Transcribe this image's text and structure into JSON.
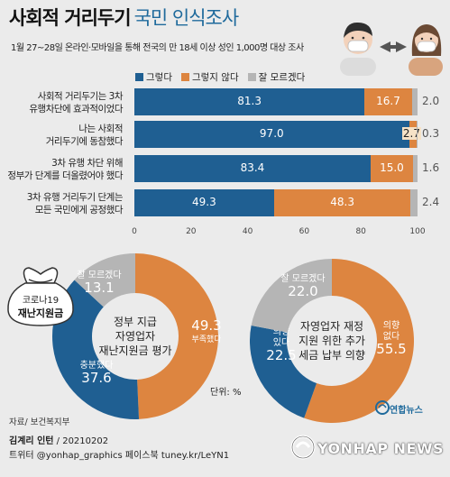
{
  "title_bold": "사회적 거리두기",
  "title_light": "국민 인식조사",
  "subtitle": "1월 27~28일 온라인·모바일을 통해 전국의 만 18세 이상 성인 1,000명 대상 조사",
  "colors": {
    "agree": "#1f5f92",
    "disagree": "#dd8540",
    "unsure": "#b5b5b5",
    "bg": "#ebebeb"
  },
  "chart_data": [
    {
      "type": "bar",
      "orientation": "horizontal-stacked",
      "legend": [
        "그렇다",
        "그렇지 않다",
        "잘 모르겠다"
      ],
      "legend_position": "top",
      "categories": [
        [
          "사회적 거리두기는 3차",
          "유행차단에 효과적이었다"
        ],
        [
          "나는 사회적",
          "거리두기에 동참했다"
        ],
        [
          "3차 유행 차단 위해",
          "정부가 단계를 더올렸어야 했다"
        ],
        [
          "3차 유행 거리두기 단계는",
          "모든 국민에게 공정했다"
        ]
      ],
      "series": [
        {
          "name": "그렇다",
          "values": [
            81.3,
            97.0,
            83.4,
            49.3
          ],
          "labels": [
            "81.3",
            "97.0",
            "83.4",
            "49.3"
          ]
        },
        {
          "name": "그렇지 않다",
          "values": [
            16.7,
            2.7,
            15.0,
            48.3
          ],
          "labels": [
            "16.7",
            "2.7",
            "15.0",
            "48.3"
          ]
        },
        {
          "name": "잘 모르겠다",
          "values": [
            2.0,
            0.3,
            1.6,
            2.4
          ],
          "labels": [
            "2.0",
            "0.3",
            "1.6",
            "2.4"
          ]
        }
      ],
      "xlim": [
        0,
        100
      ],
      "xticks": [
        "0",
        "20",
        "40",
        "60",
        "80",
        "100"
      ]
    },
    {
      "type": "pie",
      "style": "donut",
      "center_text": [
        "정부 지급",
        "자영업자",
        "재난지원금 평가"
      ],
      "slices": [
        {
          "label": "부족했다",
          "value": 49.3,
          "value_text": "49.3",
          "color": "#dd8540"
        },
        {
          "label": "충분했다",
          "value": 37.6,
          "value_text": "37.6",
          "color": "#1f5f92"
        },
        {
          "label": "잘 모르겠다",
          "value": 13.1,
          "value_text": "13.1",
          "color": "#b5b5b5"
        }
      ]
    },
    {
      "type": "pie",
      "style": "donut",
      "center_text": [
        "자영업자 재정",
        "지원 위한 추가",
        "세금 납부 의향"
      ],
      "slices": [
        {
          "label": "의향 없다",
          "label_lines": [
            "의향",
            "없다"
          ],
          "value": 55.5,
          "value_text": "55.5",
          "color": "#dd8540"
        },
        {
          "label": "의향 있다",
          "label_lines": [
            "의향",
            "있다"
          ],
          "value": 22.5,
          "value_text": "22.5",
          "color": "#1f5f92"
        },
        {
          "label": "잘 모르겠다",
          "label_lines": [
            "잘 모르겠다"
          ],
          "value": 22.0,
          "value_text": "22.0",
          "color": "#b5b5b5"
        }
      ]
    }
  ],
  "bag_text": [
    "코로나19",
    "재난지원금"
  ],
  "unit": "단위: %",
  "source": "자료/ 보건복지부",
  "credit_name": "김계리 인턴",
  "credit_date": " / 20210202",
  "credit_sns": "트위터 @yonhap_graphics  페이스북 tuney.kr/LeYN1",
  "logo_small": "연합뉴스",
  "logo_main": "YONHAP NEWS"
}
